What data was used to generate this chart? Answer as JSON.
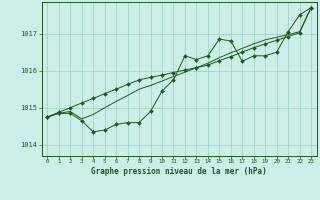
{
  "title": "Graphe pression niveau de la mer (hPa)",
  "background_color": "#cceee8",
  "grid_color": "#99ccbb",
  "line_color": "#1a5c1a",
  "xlim": [
    -0.5,
    23.5
  ],
  "ylim": [
    1013.7,
    1017.85
  ],
  "yticks": [
    1014,
    1015,
    1016,
    1017
  ],
  "xticks": [
    0,
    1,
    2,
    3,
    4,
    5,
    6,
    7,
    8,
    9,
    10,
    11,
    12,
    13,
    14,
    15,
    16,
    17,
    18,
    19,
    20,
    21,
    22,
    23
  ],
  "hours": [
    0,
    1,
    2,
    3,
    4,
    5,
    6,
    7,
    8,
    9,
    10,
    11,
    12,
    13,
    14,
    15,
    16,
    17,
    18,
    19,
    20,
    21,
    22,
    23
  ],
  "pressure_main": [
    1014.75,
    1014.85,
    1014.85,
    1014.65,
    1014.35,
    1014.4,
    1014.55,
    1014.6,
    1014.6,
    1014.9,
    1015.45,
    1015.75,
    1016.4,
    1016.3,
    1016.4,
    1016.85,
    1016.8,
    1016.25,
    1016.4,
    1016.4,
    1016.5,
    1017.05,
    1017.5,
    1017.7
  ],
  "pressure_linear1": [
    1014.75,
    1014.88,
    1015.0,
    1015.13,
    1015.25,
    1015.38,
    1015.5,
    1015.63,
    1015.75,
    1015.82,
    1015.88,
    1015.95,
    1016.02,
    1016.08,
    1016.15,
    1016.27,
    1016.38,
    1016.5,
    1016.62,
    1016.72,
    1016.82,
    1016.92,
    1017.02,
    1017.7
  ],
  "pressure_linear2": [
    1014.75,
    1014.85,
    1014.9,
    1014.7,
    1014.82,
    1015.0,
    1015.17,
    1015.33,
    1015.5,
    1015.6,
    1015.72,
    1015.84,
    1015.96,
    1016.08,
    1016.2,
    1016.35,
    1016.48,
    1016.6,
    1016.72,
    1016.83,
    1016.9,
    1016.97,
    1017.05,
    1017.7
  ]
}
